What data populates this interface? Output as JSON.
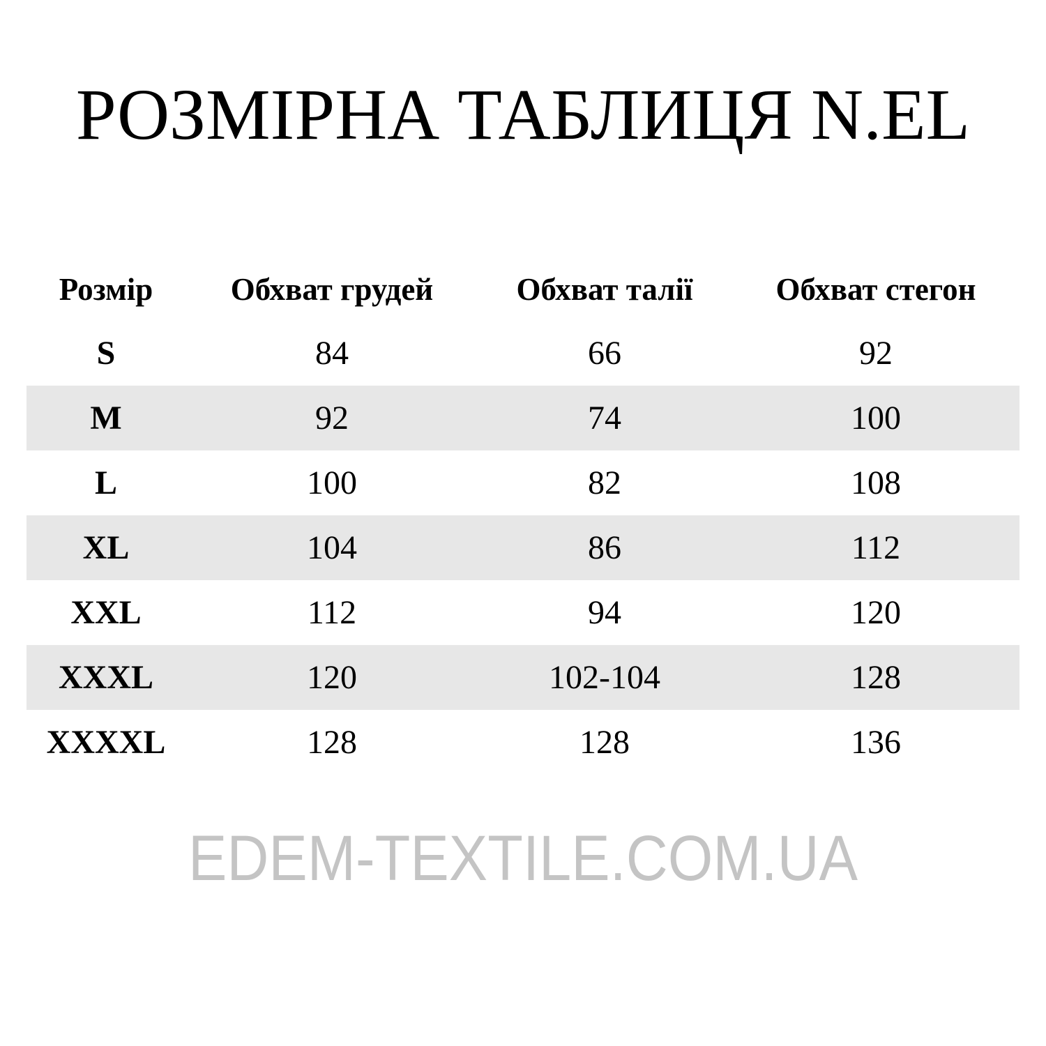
{
  "title": "РОЗМІРНА ТАБЛИЦЯ N.EL",
  "table": {
    "headers": [
      "Розмір",
      "Обхват грудей",
      "Обхват талії",
      "Обхват стегон"
    ],
    "rows": [
      [
        "S",
        "84",
        "66",
        "92"
      ],
      [
        "M",
        "92",
        "74",
        "100"
      ],
      [
        "L",
        "100",
        "82",
        "108"
      ],
      [
        "XL",
        "104",
        "86",
        "112"
      ],
      [
        "XXL",
        "112",
        "94",
        "120"
      ],
      [
        "XXXL",
        "120",
        "102-104",
        "128"
      ],
      [
        "XXXXL",
        "128",
        "128",
        "136"
      ]
    ]
  },
  "watermark": "EDEM-TEXTILE.COM.UA",
  "colors": {
    "row_shade": "#e7e7e7",
    "watermark": "#c4c4c4",
    "text": "#000000"
  }
}
